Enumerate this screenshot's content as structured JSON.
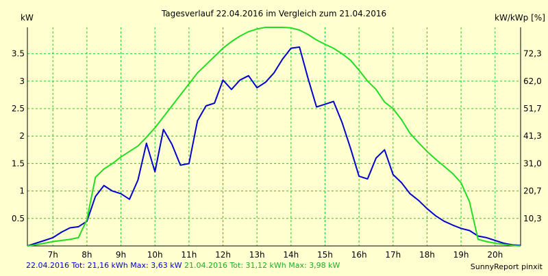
{
  "chart_data": {
    "type": "line",
    "title": "Tagesverlauf 22.04.2016 im Vergleich zum 21.04.2016",
    "ylabel_left": "kW",
    "ylabel_right": "kW/kWp [%]",
    "x_ticks": [
      "7h",
      "8h",
      "9h",
      "10h",
      "11h",
      "12h",
      "13h",
      "14h",
      "15h",
      "16h",
      "17h",
      "18h",
      "19h",
      "20h"
    ],
    "y_ticks_left": [
      "0.5",
      "1",
      "1.5",
      "2",
      "2.5",
      "3",
      "3.5"
    ],
    "y_ticks_right": [
      "10,3",
      "20,7",
      "31,0",
      "41,3",
      "51,7",
      "62,0",
      "72,3"
    ],
    "xlim": [
      6.25,
      20.75
    ],
    "ylim": [
      0,
      3.98
    ],
    "grid": true,
    "series": [
      {
        "name": "22.04.2016",
        "color": "#0000cc",
        "x": [
          6.25,
          6.5,
          6.75,
          7,
          7.25,
          7.5,
          7.75,
          8,
          8.25,
          8.5,
          8.75,
          9,
          9.25,
          9.5,
          9.75,
          10,
          10.25,
          10.5,
          10.75,
          11,
          11.25,
          11.5,
          11.75,
          12,
          12.25,
          12.5,
          12.75,
          13,
          13.25,
          13.5,
          13.75,
          14,
          14.25,
          14.5,
          14.75,
          15,
          15.25,
          15.5,
          15.75,
          16,
          16.25,
          16.5,
          16.75,
          17,
          17.25,
          17.5,
          17.75,
          18,
          18.25,
          18.5,
          18.75,
          19,
          19.25,
          19.5,
          19.75,
          20,
          20.25,
          20.5,
          20.75
        ],
        "y": [
          0,
          0.05,
          0.1,
          0.15,
          0.25,
          0.33,
          0.35,
          0.45,
          0.9,
          1.1,
          1.0,
          0.95,
          0.85,
          1.2,
          1.87,
          1.35,
          2.12,
          1.85,
          1.47,
          1.5,
          2.28,
          2.55,
          2.6,
          3.02,
          2.85,
          3.02,
          3.1,
          2.88,
          2.98,
          3.15,
          3.4,
          3.6,
          3.62,
          3.05,
          2.53,
          2.58,
          2.63,
          2.25,
          1.78,
          1.27,
          1.22,
          1.6,
          1.75,
          1.3,
          1.15,
          0.95,
          0.83,
          0.68,
          0.55,
          0.45,
          0.38,
          0.32,
          0.28,
          0.18,
          0.15,
          0.1,
          0.05,
          0.02,
          0.01
        ]
      },
      {
        "name": "21.04.2016",
        "color": "#22dd22",
        "x": [
          6.25,
          6.5,
          6.75,
          7,
          7.25,
          7.5,
          7.75,
          8,
          8.25,
          8.5,
          8.75,
          9,
          9.25,
          9.5,
          9.75,
          10,
          10.25,
          10.5,
          10.75,
          11,
          11.25,
          11.5,
          11.75,
          12,
          12.25,
          12.5,
          12.75,
          13,
          13.25,
          13.5,
          13.75,
          14,
          14.25,
          14.5,
          14.75,
          15,
          15.25,
          15.5,
          15.75,
          16,
          16.25,
          16.5,
          16.75,
          17,
          17.25,
          17.5,
          17.75,
          18,
          18.25,
          18.5,
          18.75,
          19,
          19.25,
          19.5,
          19.75,
          20,
          20.25,
          20.5,
          20.75
        ],
        "y": [
          0,
          0.02,
          0.05,
          0.08,
          0.1,
          0.12,
          0.15,
          0.48,
          1.25,
          1.4,
          1.5,
          1.62,
          1.72,
          1.82,
          1.98,
          2.15,
          2.35,
          2.55,
          2.75,
          2.95,
          3.15,
          3.3,
          3.45,
          3.6,
          3.72,
          3.82,
          3.9,
          3.95,
          3.98,
          3.98,
          3.98,
          3.97,
          3.93,
          3.85,
          3.75,
          3.67,
          3.6,
          3.5,
          3.38,
          3.2,
          3.0,
          2.85,
          2.62,
          2.5,
          2.3,
          2.05,
          1.88,
          1.72,
          1.58,
          1.45,
          1.32,
          1.15,
          0.8,
          0.12,
          0.08,
          0.05,
          0.03,
          0.01,
          0
        ]
      }
    ]
  },
  "footer": {
    "series1_text": "22.04.2016 Tot: 21,16 kWh Max: 3,63 kW",
    "series2_text": "21.04.2016 Tot: 31,12 kWh Max: 3,98 kW",
    "brand": "SunnyReport pinxit"
  }
}
